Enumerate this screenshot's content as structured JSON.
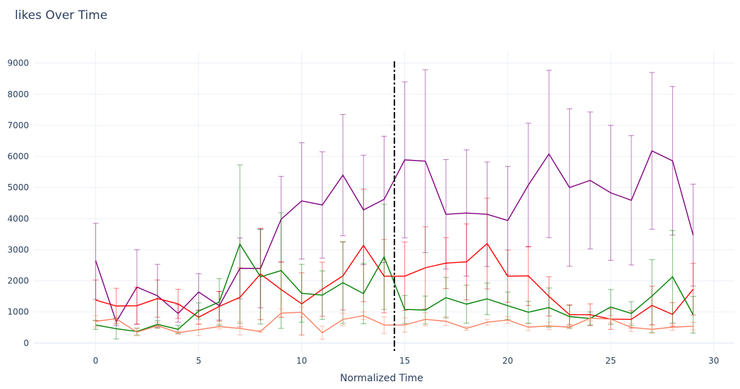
{
  "page": {
    "title": "likes Over Time"
  },
  "chart_data": {
    "type": "line",
    "title": "likes Over Time",
    "xlabel": "Normalized Time",
    "ylabel": "",
    "xlim": [
      -3,
      31
    ],
    "ylim": [
      -300,
      9400
    ],
    "x_ticks": [
      0,
      5,
      10,
      15,
      20,
      25,
      30
    ],
    "y_ticks": [
      0,
      1000,
      2000,
      3000,
      4000,
      5000,
      6000,
      7000,
      8000,
      9000
    ],
    "grid": true,
    "legend": "none",
    "vertical_marker": {
      "x": 14.5,
      "style": "dash-dot",
      "color": "#000000"
    },
    "x": [
      0,
      1,
      2,
      3,
      4,
      5,
      6,
      7,
      8,
      9,
      10,
      11,
      12,
      13,
      14,
      15,
      16,
      17,
      18,
      19,
      20,
      21,
      22,
      23,
      24,
      25,
      26,
      27,
      28,
      29
    ],
    "series": [
      {
        "color": "#800080",
        "values": [
          2650,
          680,
          1800,
          1520,
          950,
          1640,
          1200,
          2400,
          2400,
          3980,
          4570,
          4440,
          5400,
          4280,
          4620,
          5890,
          5850,
          4140,
          4180,
          4140,
          3940,
          5080,
          6080,
          5000,
          5230,
          4830,
          4590,
          6180,
          5860,
          3470
        ],
        "upper": [
          3850,
          800,
          3000,
          2530,
          1230,
          2230,
          1660,
          3380,
          3670,
          5360,
          6440,
          6150,
          7350,
          6040,
          6650,
          8400,
          8790,
          5900,
          6210,
          5820,
          5680,
          7070,
          8770,
          7530,
          7430,
          7000,
          6670,
          8700,
          8250,
          5110
        ],
        "lower": [
          1400,
          560,
          600,
          510,
          670,
          1050,
          740,
          1420,
          1130,
          2600,
          2700,
          2730,
          3450,
          2520,
          2590,
          3380,
          2910,
          2380,
          2150,
          2460,
          2200,
          3090,
          3390,
          2470,
          3030,
          2660,
          2510,
          3660,
          3470,
          1830
        ]
      },
      {
        "color": "#ff0000",
        "values": [
          1380,
          1190,
          1200,
          1430,
          1260,
          830,
          1180,
          1470,
          2220,
          1720,
          1260,
          1730,
          2160,
          3140,
          2150,
          2150,
          2420,
          2570,
          2610,
          3200,
          2150,
          2160,
          1500,
          910,
          910,
          770,
          760,
          1210,
          920,
          1730
        ],
        "upper": [
          2030,
          1760,
          1790,
          2030,
          1730,
          1060,
          1660,
          2420,
          3690,
          2610,
          2260,
          2600,
          3260,
          4950,
          3330,
          3250,
          3740,
          3390,
          3830,
          4660,
          2990,
          3110,
          2130,
          1230,
          1260,
          1100,
          1040,
          1830,
          1300,
          2560
        ],
        "lower": [
          730,
          620,
          610,
          830,
          790,
          600,
          700,
          520,
          750,
          830,
          260,
          860,
          1060,
          1330,
          970,
          1050,
          1100,
          1750,
          1390,
          1740,
          1310,
          1210,
          870,
          590,
          560,
          440,
          480,
          590,
          540,
          900
        ]
      },
      {
        "color": "#008000",
        "values": [
          580,
          460,
          370,
          600,
          440,
          1030,
          1320,
          3180,
          2130,
          2330,
          1600,
          1540,
          1940,
          1590,
          2770,
          1080,
          1060,
          1460,
          1250,
          1420,
          1200,
          990,
          1140,
          850,
          790,
          1160,
          950,
          1510,
          2130,
          910
        ],
        "upper": [
          720,
          790,
          480,
          720,
          570,
          1290,
          2070,
          5730,
          3650,
          4190,
          2530,
          2320,
          3250,
          2560,
          4460,
          1530,
          1510,
          2110,
          1860,
          1930,
          1640,
          1340,
          1770,
          1210,
          1000,
          1720,
          1330,
          2680,
          3620,
          1500
        ],
        "lower": [
          440,
          130,
          260,
          480,
          310,
          770,
          570,
          630,
          610,
          470,
          670,
          760,
          630,
          620,
          1080,
          630,
          610,
          810,
          640,
          910,
          760,
          640,
          510,
          490,
          580,
          600,
          570,
          340,
          640,
          320
        ]
      },
      {
        "color": "#fa8060",
        "values": [
          700,
          780,
          350,
          560,
          330,
          430,
          530,
          470,
          370,
          960,
          990,
          330,
          760,
          880,
          580,
          580,
          760,
          700,
          470,
          670,
          740,
          510,
          550,
          510,
          800,
          770,
          500,
          440,
          510,
          540
        ],
        "upper": [
          880,
          860,
          470,
          650,
          380,
          620,
          610,
          680,
          400,
          1090,
          1150,
          540,
          960,
          1000,
          850,
          810,
          970,
          840,
          530,
          760,
          850,
          620,
          670,
          560,
          890,
          890,
          630,
          570,
          610,
          660
        ],
        "lower": [
          520,
          700,
          230,
          470,
          280,
          240,
          450,
          260,
          340,
          830,
          830,
          120,
          560,
          760,
          310,
          350,
          550,
          560,
          410,
          580,
          630,
          400,
          430,
          460,
          710,
          650,
          370,
          310,
          410,
          420
        ]
      }
    ]
  }
}
